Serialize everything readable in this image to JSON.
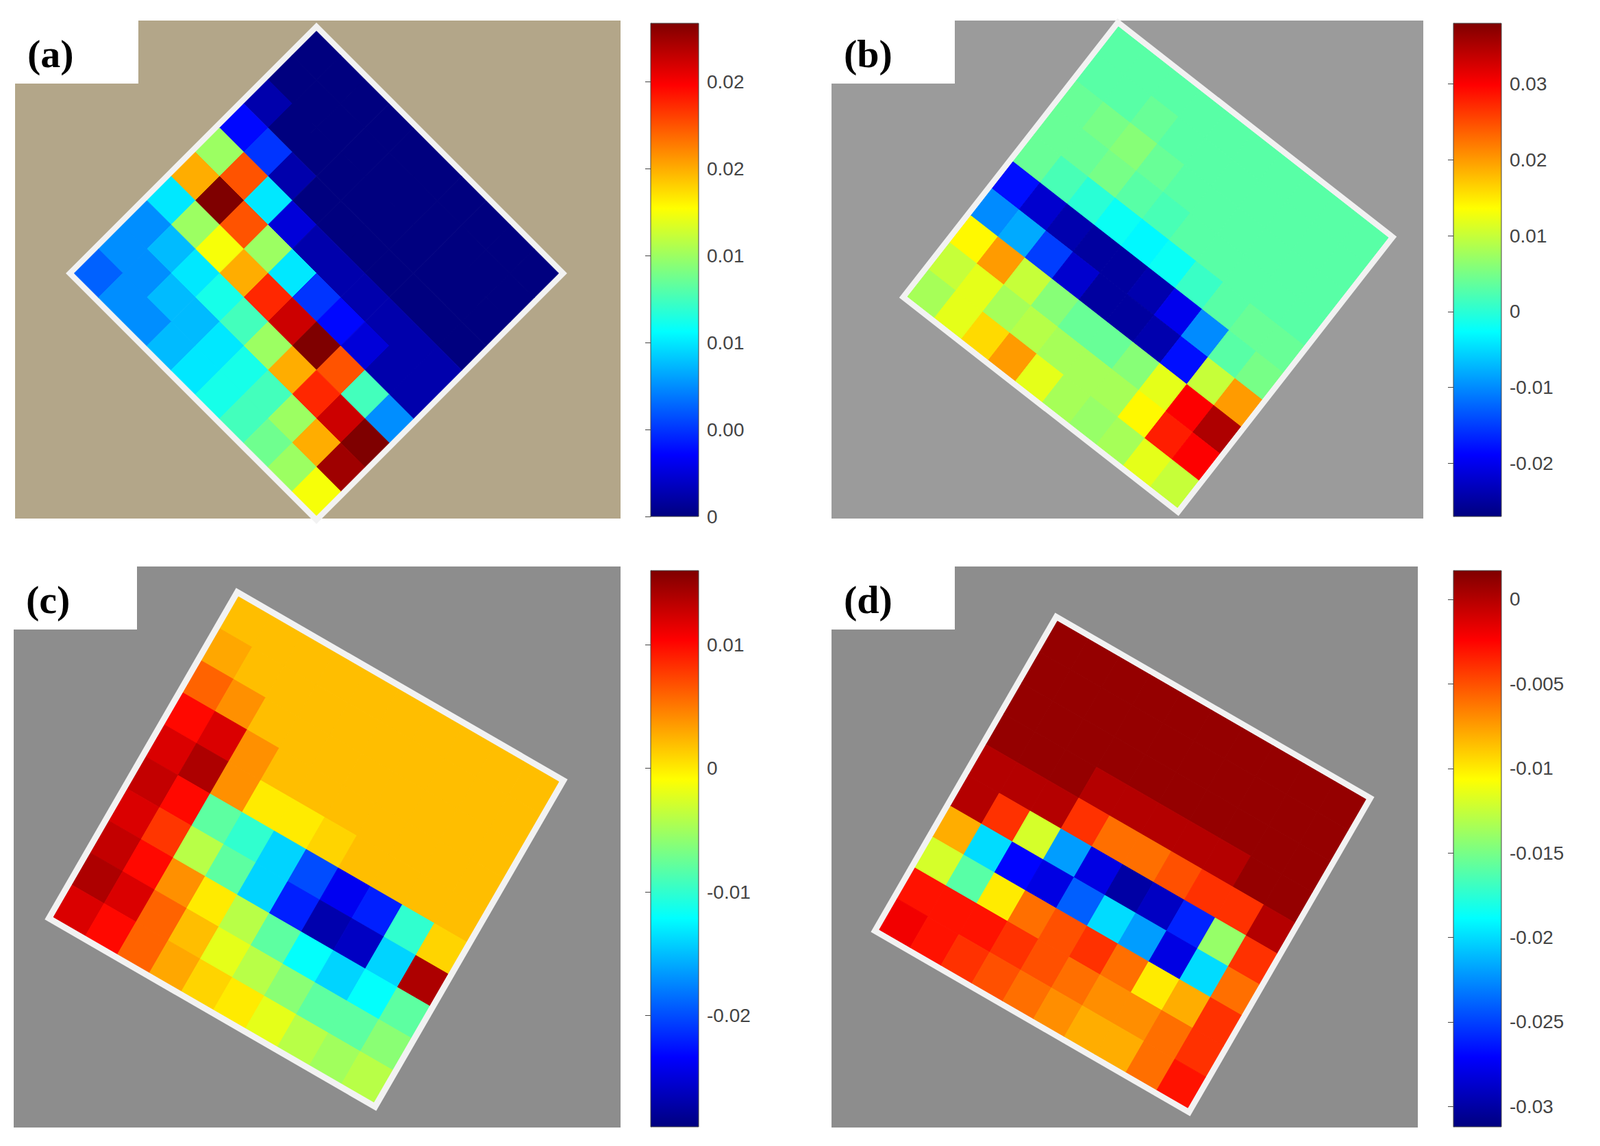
{
  "chart_data": [
    {
      "type": "heatmap",
      "title": "(a)",
      "tick_labels": false,
      "cells": [
        [
          0.0,
          0.0,
          0.0,
          0.0,
          0.0,
          0.0,
          0.0,
          0.0,
          0.0,
          0.0
        ],
        [
          0.0,
          0.0,
          0.0,
          0.0,
          0.0,
          0.0,
          0.0,
          0.0,
          0.0,
          0.0
        ],
        [
          0.001,
          0.0,
          0.0,
          0.0,
          0.0,
          0.0,
          0.0,
          0.0,
          0.0,
          0.0
        ],
        [
          0.003,
          0.004,
          0.001,
          0.0,
          0.0,
          0.0,
          0.0,
          0.0,
          0.0,
          0.0
        ],
        [
          0.012,
          0.018,
          0.008,
          0.002,
          0.001,
          0.001,
          0.001,
          0.001,
          0.001,
          0.001
        ],
        [
          0.016,
          0.023,
          0.018,
          0.012,
          0.008,
          0.004,
          0.003,
          0.002,
          0.001,
          0.001
        ],
        [
          0.008,
          0.012,
          0.014,
          0.016,
          0.019,
          0.021,
          0.023,
          0.018,
          0.01,
          0.006
        ],
        [
          0.006,
          0.007,
          0.008,
          0.009,
          0.01,
          0.012,
          0.016,
          0.019,
          0.021,
          0.023
        ],
        [
          0.006,
          0.006,
          0.007,
          0.007,
          0.008,
          0.009,
          0.01,
          0.012,
          0.016,
          0.022
        ],
        [
          0.005,
          0.006,
          0.006,
          0.007,
          0.008,
          0.009,
          0.01,
          0.011,
          0.012,
          0.014
        ]
      ],
      "colorbar": {
        "range": [
          0,
          0.0227
        ],
        "ticks": [
          0,
          {
            "value": 0.004,
            "label": "0.00"
          },
          {
            "value": 0.008,
            "label": "0.01"
          },
          {
            "value": 0.012,
            "label": "0.01"
          },
          {
            "value": 0.016,
            "label": "0.02"
          },
          0.02
        ]
      }
    },
    {
      "type": "heatmap",
      "title": "(b)",
      "tick_labels": false,
      "cells": [
        [
          0.003,
          0.003,
          0.003,
          0.003,
          0.003,
          0.003,
          0.003,
          0.003,
          0.003,
          0.003
        ],
        [
          0.003,
          0.003,
          0.004,
          0.003,
          0.003,
          0.003,
          0.003,
          0.003,
          0.003,
          0.003
        ],
        [
          0.004,
          0.005,
          0.006,
          0.004,
          0.003,
          0.003,
          0.003,
          0.003,
          0.003,
          0.003
        ],
        [
          0.004,
          0.004,
          0.005,
          0.003,
          0.002,
          0.003,
          0.003,
          0.003,
          0.003,
          0.003
        ],
        [
          0.004,
          0.002,
          0.0,
          -0.002,
          -0.003,
          -0.002,
          0.001,
          0.003,
          0.004,
          0.004
        ],
        [
          -0.018,
          -0.022,
          -0.024,
          -0.025,
          -0.025,
          -0.024,
          -0.02,
          -0.01,
          0.003,
          0.005
        ],
        [
          -0.01,
          -0.008,
          -0.015,
          -0.022,
          -0.025,
          -0.025,
          -0.024,
          -0.018,
          0.01,
          0.02
        ],
        [
          0.014,
          0.02,
          0.01,
          0.006,
          0.004,
          0.004,
          0.006,
          0.012,
          0.03,
          0.035
        ],
        [
          0.01,
          0.012,
          0.008,
          0.009,
          0.008,
          0.008,
          0.008,
          0.014,
          0.028,
          0.03
        ],
        [
          0.008,
          0.012,
          0.016,
          0.02,
          0.012,
          0.008,
          0.007,
          0.008,
          0.012,
          0.01
        ]
      ],
      "colorbar": {
        "range": [
          -0.027,
          0.038
        ],
        "ticks": [
          -0.02,
          -0.01,
          0,
          0.01,
          0.02,
          0.03
        ]
      }
    },
    {
      "type": "heatmap",
      "title": "(c)",
      "tick_labels": false,
      "cells": [
        [
          0.002,
          0.002,
          0.002,
          0.002,
          0.002,
          0.002,
          0.002,
          0.002,
          0.002,
          0.002
        ],
        [
          0.003,
          0.002,
          0.002,
          0.002,
          0.002,
          0.002,
          0.002,
          0.002,
          0.002,
          0.002
        ],
        [
          0.006,
          0.004,
          0.002,
          0.002,
          0.002,
          0.002,
          0.002,
          0.002,
          0.002,
          0.002
        ],
        [
          0.01,
          0.012,
          0.004,
          0.002,
          0.002,
          0.002,
          0.002,
          0.002,
          0.002,
          0.002
        ],
        [
          0.012,
          0.014,
          0.004,
          0.0,
          0.0,
          0.001,
          0.002,
          0.002,
          0.002,
          0.002
        ],
        [
          0.013,
          0.01,
          -0.008,
          -0.01,
          -0.014,
          -0.02,
          -0.024,
          -0.022,
          -0.01,
          0.001
        ],
        [
          0.012,
          0.008,
          -0.004,
          -0.008,
          -0.014,
          -0.022,
          -0.027,
          -0.026,
          -0.014,
          0.014
        ],
        [
          0.013,
          0.01,
          0.004,
          0.0,
          -0.004,
          -0.008,
          -0.012,
          -0.014,
          -0.012,
          -0.008
        ],
        [
          0.014,
          0.012,
          0.006,
          0.002,
          -0.002,
          -0.004,
          -0.006,
          -0.008,
          -0.008,
          -0.006
        ],
        [
          0.012,
          0.01,
          0.006,
          0.003,
          0.001,
          0.0,
          -0.002,
          -0.004,
          -0.005,
          -0.004
        ]
      ],
      "colorbar": {
        "range": [
          -0.029,
          0.016
        ],
        "ticks": [
          -0.02,
          -0.01,
          0,
          0.01
        ]
      }
    },
    {
      "type": "heatmap",
      "title": "(d)",
      "tick_labels": false,
      "cells": [
        [
          0.001,
          0.001,
          0.001,
          0.001,
          0.001,
          0.001,
          0.001,
          0.001,
          0.001,
          0.001
        ],
        [
          0.001,
          0.001,
          0.001,
          0.001,
          0.001,
          0.001,
          0.001,
          0.001,
          0.001,
          0.001
        ],
        [
          0.001,
          0.001,
          0.001,
          0.001,
          0.001,
          0.001,
          0.001,
          0.001,
          0.001,
          0.001
        ],
        [
          0.001,
          0.001,
          0.001,
          0.0,
          0.0,
          0.0,
          0.0,
          0.0,
          0.001,
          0.001
        ],
        [
          0.0,
          0.0,
          0.0,
          -0.004,
          -0.006,
          -0.006,
          -0.005,
          -0.004,
          -0.004,
          0.0
        ],
        [
          0.0,
          -0.004,
          -0.012,
          -0.022,
          -0.028,
          -0.03,
          -0.029,
          -0.026,
          -0.014,
          -0.004
        ],
        [
          -0.008,
          -0.02,
          -0.027,
          -0.028,
          -0.024,
          -0.02,
          -0.022,
          -0.028,
          -0.02,
          -0.006
        ],
        [
          -0.012,
          -0.016,
          -0.01,
          -0.006,
          -0.005,
          -0.004,
          -0.006,
          -0.01,
          -0.008,
          -0.004
        ],
        [
          -0.003,
          -0.003,
          -0.003,
          -0.004,
          -0.005,
          -0.006,
          -0.007,
          -0.007,
          -0.006,
          -0.004
        ],
        [
          -0.002,
          -0.003,
          -0.004,
          -0.005,
          -0.006,
          -0.007,
          -0.008,
          -0.008,
          -0.006,
          -0.003
        ]
      ],
      "colorbar": {
        "range": [
          -0.0312,
          0.0017
        ],
        "ticks": [
          -0.03,
          -0.025,
          -0.02,
          -0.015,
          -0.01,
          -0.005,
          0
        ]
      }
    }
  ]
}
